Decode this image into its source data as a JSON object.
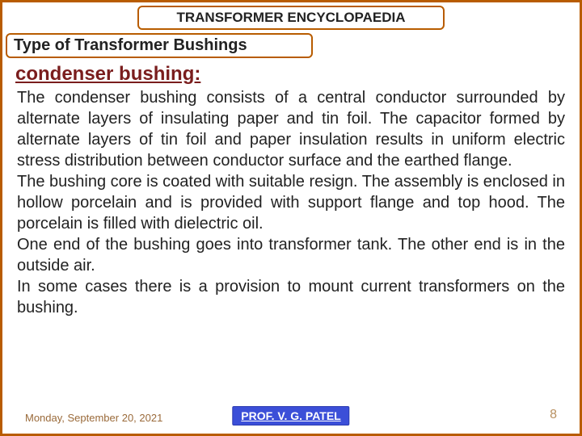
{
  "header": {
    "title": "TRANSFORMER ENCYCLOPAEDIA"
  },
  "section": {
    "title": "Type of Transformer Bushings"
  },
  "content": {
    "heading": "condenser bushing:",
    "body": "The condenser bushing consists of a central conductor surrounded by alternate layers of insulating paper and tin foil. The capacitor formed by alternate layers of tin foil and paper insulation results in uniform electric stress distribution between conductor surface and the earthed flange.\nThe bushing core is coated with suitable resign. The assembly is enclosed in hollow porcelain and is provided with support flange and top hood. The porcelain is filled with dielectric oil.\nOne end of the bushing goes into transformer tank. The other end is in the outside air.\nIn some cases there is a provision to mount current transformers on the bushing."
  },
  "footer": {
    "date": "Monday, September 20, 2021",
    "author": "PROF. V. G. PATEL",
    "page": "8"
  },
  "colors": {
    "border": "#b85c00",
    "heading": "#7a1d1d",
    "author_bg": "#3b4fd8",
    "date_color": "#9a6a3a",
    "page_color": "#b89060"
  }
}
